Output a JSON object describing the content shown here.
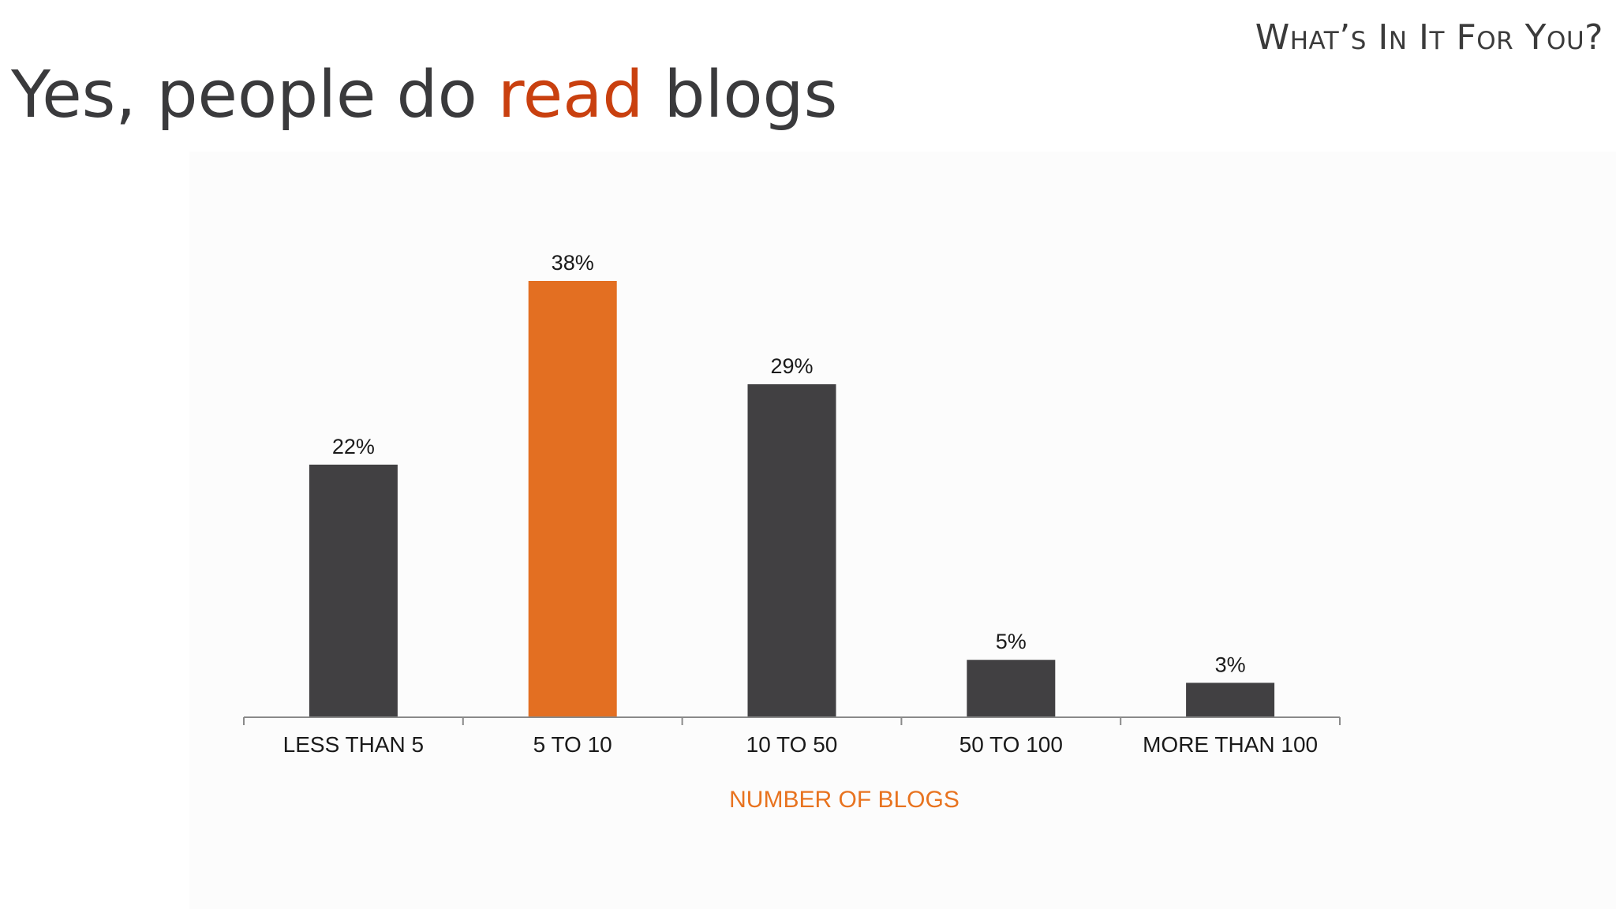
{
  "header": {
    "section_label": "What’s In It For You?",
    "title_before": "Yes, people do ",
    "title_highlight": "read",
    "title_after": " blogs"
  },
  "colors": {
    "bar_default": "#414042",
    "bar_highlight": "#e36f22",
    "title_accent": "#c9400f",
    "xlabel": "#e8731f",
    "text": "#3a3a3c"
  },
  "chart_data": {
    "type": "bar",
    "title": "",
    "xlabel": "NUMBER OF BLOGS",
    "ylabel": "",
    "categories": [
      "LESS THAN 5",
      "5 TO 10",
      "10 TO 50",
      "50 TO 100",
      "MORE THAN 100"
    ],
    "values": [
      22,
      38,
      29,
      5,
      3
    ],
    "data_labels": [
      "22%",
      "38%",
      "29%",
      "5%",
      "3%"
    ],
    "highlight_index": 1,
    "ylim": [
      0,
      38
    ],
    "grid": false,
    "legend": "none"
  }
}
